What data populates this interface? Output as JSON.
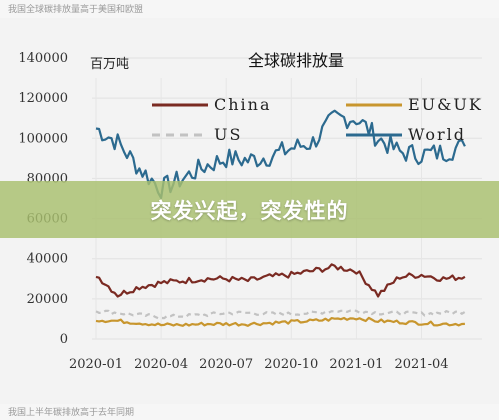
{
  "captions": {
    "top": "我国全球碳排放量高于美国和欧盟",
    "bottom": "我国上半年碳排放高于去年同期"
  },
  "banner": {
    "text": "突发兴起，突发性的"
  },
  "colors": {
    "china": "#7a2a22",
    "eu_uk": "#c8962e",
    "us": "#c2c2c2",
    "world": "#2c6a8f",
    "banner": "#a8c06e"
  },
  "chart_data": {
    "type": "line",
    "title": "全球碳排放量",
    "unit_label": "百万吨",
    "ylim": [
      0,
      140000
    ],
    "y_ticks": [
      0,
      20000,
      40000,
      60000,
      80000,
      100000,
      120000,
      140000
    ],
    "x_ticks": [
      "2020-01",
      "2020-04",
      "2020-07",
      "2020-10",
      "2021-01",
      "2021-04"
    ],
    "legend": [
      "China",
      "EU&UK",
      "US",
      "World"
    ],
    "series": [
      {
        "name": "World",
        "points": [
          [
            "2020-01",
            105000
          ],
          [
            "2020-02",
            98000
          ],
          [
            "2020-03",
            85000
          ],
          [
            "2020-04",
            75000
          ],
          [
            "2020-05",
            80000
          ],
          [
            "2020-06",
            86000
          ],
          [
            "2020-07",
            90000
          ],
          [
            "2020-08",
            89000
          ],
          [
            "2020-09",
            91000
          ],
          [
            "2020-10",
            95000
          ],
          [
            "2020-11",
            98000
          ],
          [
            "2020-12",
            110000
          ],
          [
            "2021-01",
            110000
          ],
          [
            "2021-02",
            100000
          ],
          [
            "2021-03",
            93000
          ],
          [
            "2021-04",
            92000
          ],
          [
            "2021-05",
            93000
          ],
          [
            "2021-06",
            96000
          ]
        ]
      },
      {
        "name": "China",
        "points": [
          [
            "2020-01",
            32000
          ],
          [
            "2020-02",
            22000
          ],
          [
            "2020-03",
            26000
          ],
          [
            "2020-04",
            28000
          ],
          [
            "2020-05",
            29000
          ],
          [
            "2020-06",
            30000
          ],
          [
            "2020-07",
            30000
          ],
          [
            "2020-08",
            29000
          ],
          [
            "2020-09",
            31000
          ],
          [
            "2020-10",
            32000
          ],
          [
            "2020-11",
            34000
          ],
          [
            "2020-12",
            36000
          ],
          [
            "2021-01",
            34000
          ],
          [
            "2021-02",
            22000
          ],
          [
            "2021-03",
            31000
          ],
          [
            "2021-04",
            32000
          ],
          [
            "2021-05",
            30000
          ],
          [
            "2021-06",
            31000
          ]
        ]
      },
      {
        "name": "US",
        "points": [
          [
            "2020-01",
            14000
          ],
          [
            "2020-02",
            13000
          ],
          [
            "2020-03",
            12000
          ],
          [
            "2020-04",
            11000
          ],
          [
            "2020-05",
            11500
          ],
          [
            "2020-06",
            12000
          ],
          [
            "2020-07",
            13000
          ],
          [
            "2020-08",
            13000
          ],
          [
            "2020-09",
            12500
          ],
          [
            "2020-10",
            12500
          ],
          [
            "2020-11",
            13000
          ],
          [
            "2020-12",
            14000
          ],
          [
            "2021-01",
            14000
          ],
          [
            "2021-02",
            13000
          ],
          [
            "2021-03",
            13000
          ],
          [
            "2021-04",
            12500
          ],
          [
            "2021-05",
            13000
          ],
          [
            "2021-06",
            13500
          ]
        ]
      },
      {
        "name": "EU&UK",
        "points": [
          [
            "2020-01",
            9500
          ],
          [
            "2020-02",
            9000
          ],
          [
            "2020-03",
            8000
          ],
          [
            "2020-04",
            7000
          ],
          [
            "2020-05",
            7000
          ],
          [
            "2020-06",
            7500
          ],
          [
            "2020-07",
            7500
          ],
          [
            "2020-08",
            7500
          ],
          [
            "2020-09",
            8000
          ],
          [
            "2020-10",
            8500
          ],
          [
            "2020-11",
            9000
          ],
          [
            "2020-12",
            10000
          ],
          [
            "2021-01",
            10500
          ],
          [
            "2021-02",
            9000
          ],
          [
            "2021-03",
            8500
          ],
          [
            "2021-04",
            8000
          ],
          [
            "2021-05",
            7500
          ],
          [
            "2021-06",
            7500
          ]
        ]
      }
    ]
  }
}
